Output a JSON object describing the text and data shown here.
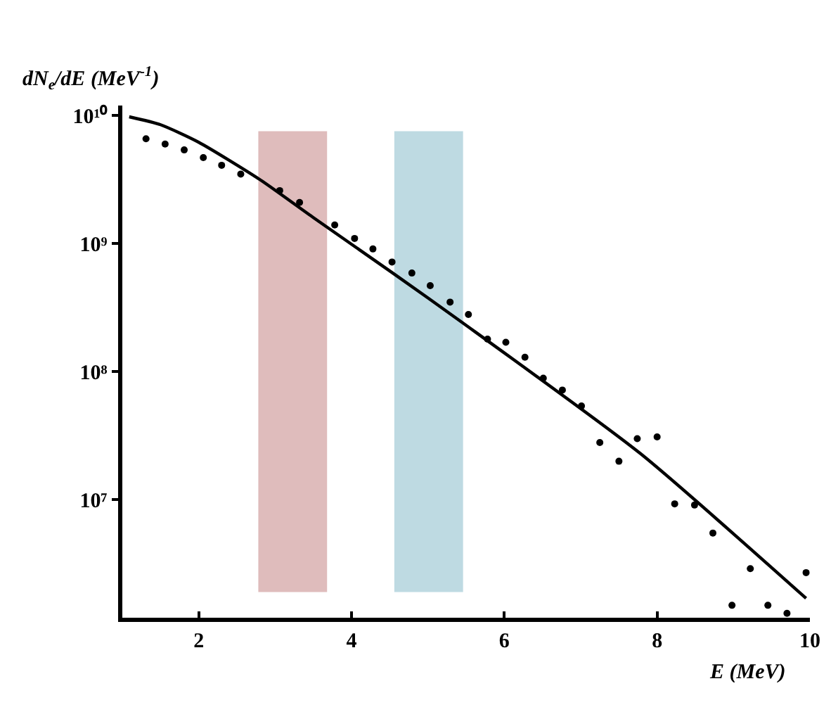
{
  "chart_data": {
    "type": "scatter",
    "xlabel": "E (MeV)",
    "ylabel": "dN$_{e}$/dE (MeV$^{-1}$)",
    "log": "y",
    "grid": false,
    "xlim": [
      1,
      10
    ],
    "xticks": [
      2,
      4,
      6,
      8,
      10
    ],
    "ylim": [
      1200000.0,
      12000000000.0
    ],
    "yticks": [
      {
        "value": 10000000.0,
        "label": "10⁷"
      },
      {
        "value": 100000000.0,
        "label": "10⁸"
      },
      {
        "value": 1000000000.0,
        "label": "10⁹"
      },
      {
        "value": 10000000000.0,
        "label": "10¹⁰"
      }
    ],
    "series": [
      {
        "marker": "circle",
        "color": "#000000",
        "x": [
          1.31,
          1.56,
          1.81,
          2.06,
          2.3,
          2.55,
          3.06,
          3.32,
          3.78,
          4.04,
          4.28,
          4.53,
          4.79,
          5.03,
          5.29,
          5.53,
          5.78,
          6.02,
          6.27,
          6.51,
          6.76,
          7.01,
          7.25,
          7.5,
          7.74,
          8.0,
          8.23,
          8.49,
          8.73,
          8.98,
          9.22,
          9.45,
          9.7,
          9.95
        ],
        "values": [
          6600000000.0,
          6000000000.0,
          5400000000.0,
          4700000000.0,
          4100000000.0,
          3500000000.0,
          2600000000.0,
          2100000000.0,
          1400000000.0,
          1100000000.0,
          910000000.0,
          720000000.0,
          590000000.0,
          470000000.0,
          350000000.0,
          280000000.0,
          180000000.0,
          170000000.0,
          130000000.0,
          89000000.0,
          72000000.0,
          54000000.0,
          28000000.0,
          20000000.0,
          30000000.0,
          31000000.0,
          9300000.0,
          9100000.0,
          5500000.0,
          1500000.0,
          2900000.0,
          1500000.0,
          1300000.0,
          2700000.0
        ]
      },
      {
        "type": "line",
        "line_style": "solid",
        "color": "#000000",
        "x": [
          1.09,
          1.5,
          2,
          2.79,
          3.5,
          4.54,
          5.46,
          7.78,
          9.95
        ],
        "values": [
          9800000000.0,
          8500000000.0,
          6200000000.0,
          3200000000.0,
          1600000000.0,
          590000000.0,
          240000000.0,
          23000000.0,
          1700000.0
        ]
      }
    ],
    "bands": [
      {
        "axis": "x",
        "from": 2.78,
        "to": 3.68,
        "color": "#d4a5a5"
      },
      {
        "axis": "x",
        "from": 4.56,
        "to": 5.46,
        "color": "#a8ced8"
      }
    ]
  }
}
